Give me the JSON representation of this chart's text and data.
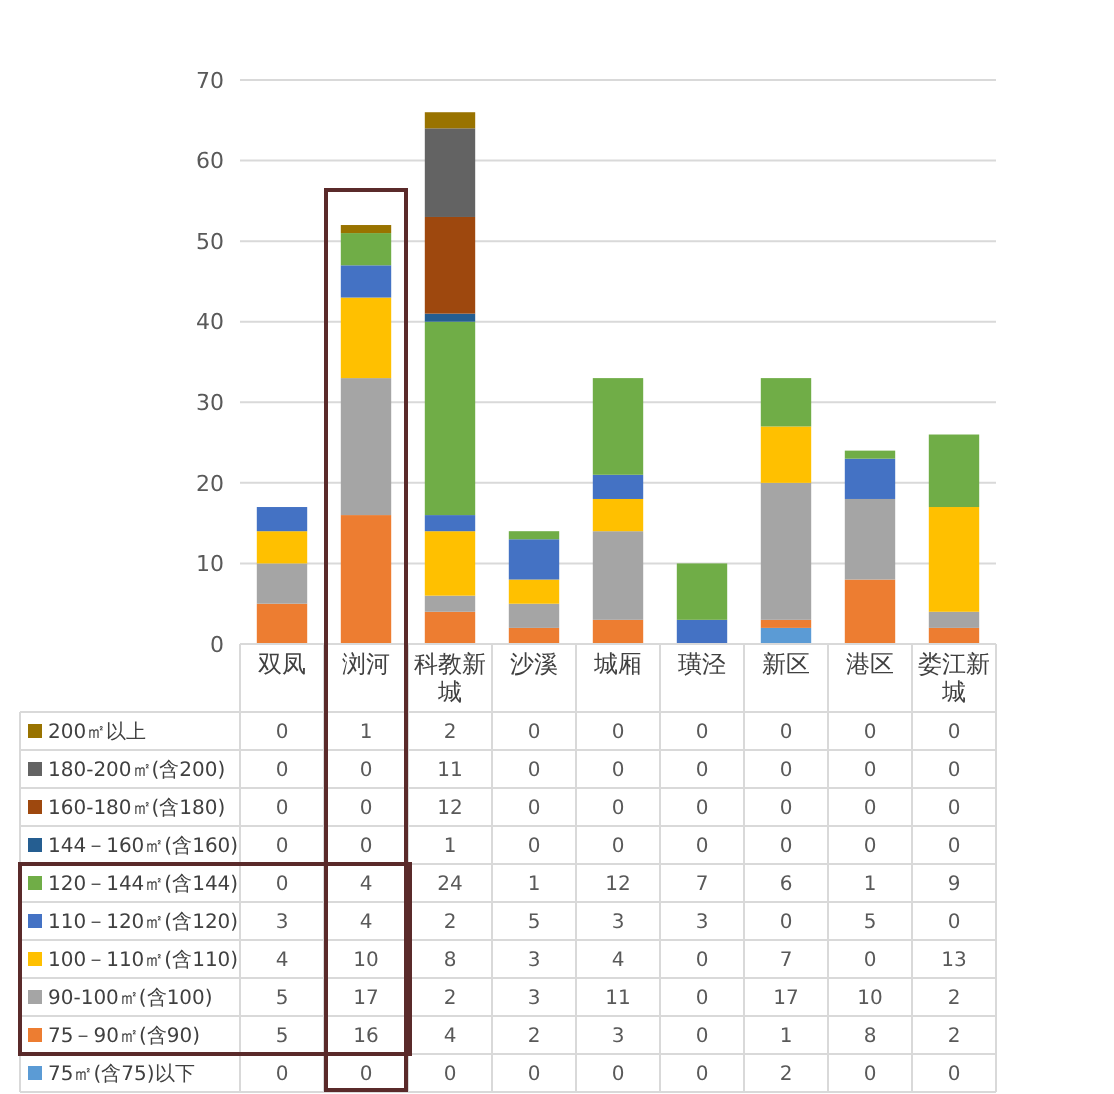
{
  "chart_data": {
    "type": "bar",
    "stacked": true,
    "categories": [
      "双凤",
      "浏河",
      "科教新城",
      "沙溪",
      "城厢",
      "璜泾",
      "新区",
      "港区",
      "娄江新城"
    ],
    "series": [
      {
        "name": "75㎡(含75)以下",
        "color": "#5b9bd5",
        "values": [
          0,
          0,
          0,
          0,
          0,
          0,
          2,
          0,
          0
        ]
      },
      {
        "name": "75－90㎡(含90)",
        "color": "#ed7d31",
        "values": [
          5,
          16,
          4,
          2,
          3,
          0,
          1,
          8,
          2
        ]
      },
      {
        "name": "90-100㎡(含100)",
        "color": "#a5a5a5",
        "values": [
          5,
          17,
          2,
          3,
          11,
          0,
          17,
          10,
          2
        ]
      },
      {
        "name": "100－110㎡(含110)",
        "color": "#ffc000",
        "values": [
          4,
          10,
          8,
          3,
          4,
          0,
          7,
          0,
          13
        ]
      },
      {
        "name": "110－120㎡(含120)",
        "color": "#4472c4",
        "values": [
          3,
          4,
          2,
          5,
          3,
          3,
          0,
          5,
          0
        ]
      },
      {
        "name": "120－144㎡(含144)",
        "color": "#70ad47",
        "values": [
          0,
          4,
          24,
          1,
          12,
          7,
          6,
          1,
          9
        ]
      },
      {
        "name": "144－160㎡(含160)",
        "color": "#255e91",
        "values": [
          0,
          0,
          1,
          0,
          0,
          0,
          0,
          0,
          0
        ]
      },
      {
        "name": "160-180㎡(含180)",
        "color": "#9e480e",
        "values": [
          0,
          0,
          12,
          0,
          0,
          0,
          0,
          0,
          0
        ]
      },
      {
        "name": "180-200㎡(含200)",
        "color": "#636363",
        "values": [
          0,
          0,
          11,
          0,
          0,
          0,
          0,
          0,
          0
        ]
      },
      {
        "name": "200㎡以上",
        "color": "#997300",
        "values": [
          0,
          1,
          2,
          0,
          0,
          0,
          0,
          0,
          0
        ]
      }
    ],
    "ylim": [
      0,
      70
    ],
    "yticks": [
      0,
      10,
      20,
      30,
      40,
      50,
      60,
      70
    ],
    "grid": "y",
    "legend": "bottom",
    "data_labels": true
  }
}
